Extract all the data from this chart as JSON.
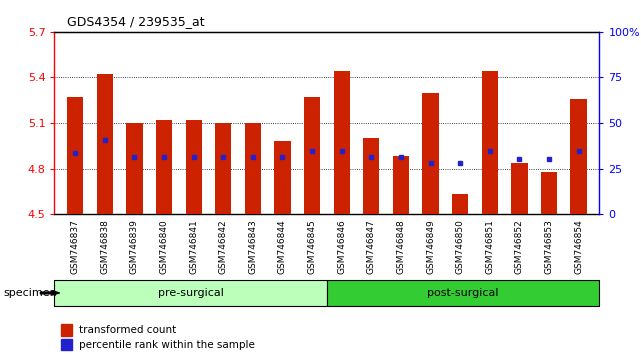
{
  "title": "GDS4354 / 239535_at",
  "samples": [
    "GSM746837",
    "GSM746838",
    "GSM746839",
    "GSM746840",
    "GSM746841",
    "GSM746842",
    "GSM746843",
    "GSM746844",
    "GSM746845",
    "GSM746846",
    "GSM746847",
    "GSM746848",
    "GSM746849",
    "GSM746850",
    "GSM746851",
    "GSM746852",
    "GSM746853",
    "GSM746854"
  ],
  "bar_values": [
    5.27,
    5.42,
    5.1,
    5.12,
    5.12,
    5.1,
    5.1,
    4.98,
    5.27,
    5.44,
    5.0,
    4.88,
    5.3,
    4.63,
    5.44,
    4.84,
    4.78,
    5.26
  ],
  "percentile_values": [
    4.905,
    4.985,
    4.875,
    4.875,
    4.875,
    4.875,
    4.875,
    4.875,
    4.915,
    4.915,
    4.875,
    4.875,
    4.835,
    4.835,
    4.915,
    4.865,
    4.865,
    4.915
  ],
  "ylim_left": [
    4.5,
    5.7
  ],
  "ylim_right": [
    0,
    100
  ],
  "yticks_left": [
    4.5,
    4.8,
    5.1,
    5.4,
    5.7
  ],
  "ytick_labels_left": [
    "4.5",
    "4.8",
    "5.1",
    "5.4",
    "5.7"
  ],
  "yticks_right": [
    0,
    25,
    50,
    75,
    100
  ],
  "ytick_labels_right": [
    "0",
    "25",
    "50",
    "75",
    "100%"
  ],
  "bar_color": "#cc2200",
  "dot_color": "#2222cc",
  "pre_surgical_count": 9,
  "post_surgical_count": 9,
  "pre_surgical_label": "pre-surgical",
  "post_surgical_label": "post-surgical",
  "pre_bg_color": "#bbffbb",
  "post_bg_color": "#33cc33",
  "specimen_label": "specimen",
  "legend_bar_label": "transformed count",
  "legend_dot_label": "percentile rank within the sample",
  "grid_color": "#666666",
  "axis_bg": "#ffffff",
  "bar_width": 0.55,
  "base_value": 4.5
}
